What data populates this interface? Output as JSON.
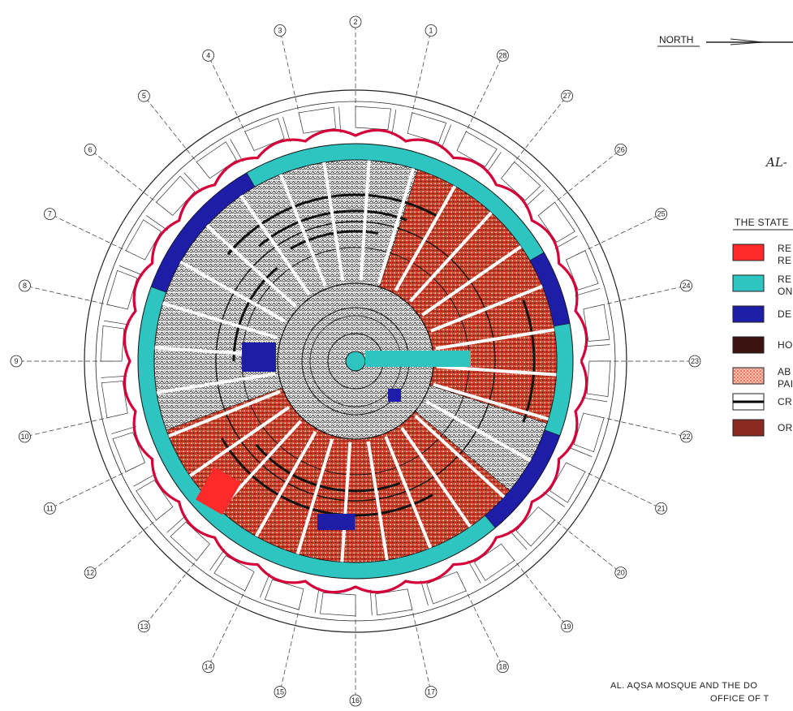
{
  "header": {
    "north_label": "NORTH",
    "title_fragment": "AL-"
  },
  "legend": {
    "heading": "THE STATE",
    "items": [
      {
        "key": "red",
        "color": "#ff2a2a",
        "lines": [
          "RE",
          "RE"
        ]
      },
      {
        "key": "teal",
        "color": "#2ec4c0",
        "lines": [
          "RE",
          "ON"
        ]
      },
      {
        "key": "blue",
        "color": "#1d1da8",
        "lines": [
          "DE"
        ]
      },
      {
        "key": "brown",
        "color": "#3a1410",
        "lines": [
          "HO"
        ]
      },
      {
        "key": "dotted",
        "color": "#e0452b",
        "lines": [
          "AB",
          "PAI"
        ]
      },
      {
        "key": "crack",
        "color": "#000000",
        "lines": [
          "CR"
        ]
      },
      {
        "key": "original",
        "color": "#8a2a20",
        "lines": [
          "OR"
        ]
      }
    ]
  },
  "footer": {
    "line1": "AL. AQSA MOSQUE AND THE DO",
    "line2": "OFFICE OF T"
  },
  "callouts": [
    "1",
    "2",
    "3",
    "4",
    "5",
    "6",
    "7",
    "8",
    "9",
    "10",
    "11",
    "12",
    "13",
    "14",
    "15",
    "16",
    "17",
    "18",
    "19",
    "20",
    "21",
    "22",
    "23",
    "24",
    "25",
    "26",
    "27",
    "28"
  ],
  "colors": {
    "scallop": "#d4003a",
    "teal": "#2ec4c0",
    "blue": "#1d1da8",
    "red_dots": "#c8361e",
    "black": "#111111",
    "pattern_gray": "#555555"
  }
}
